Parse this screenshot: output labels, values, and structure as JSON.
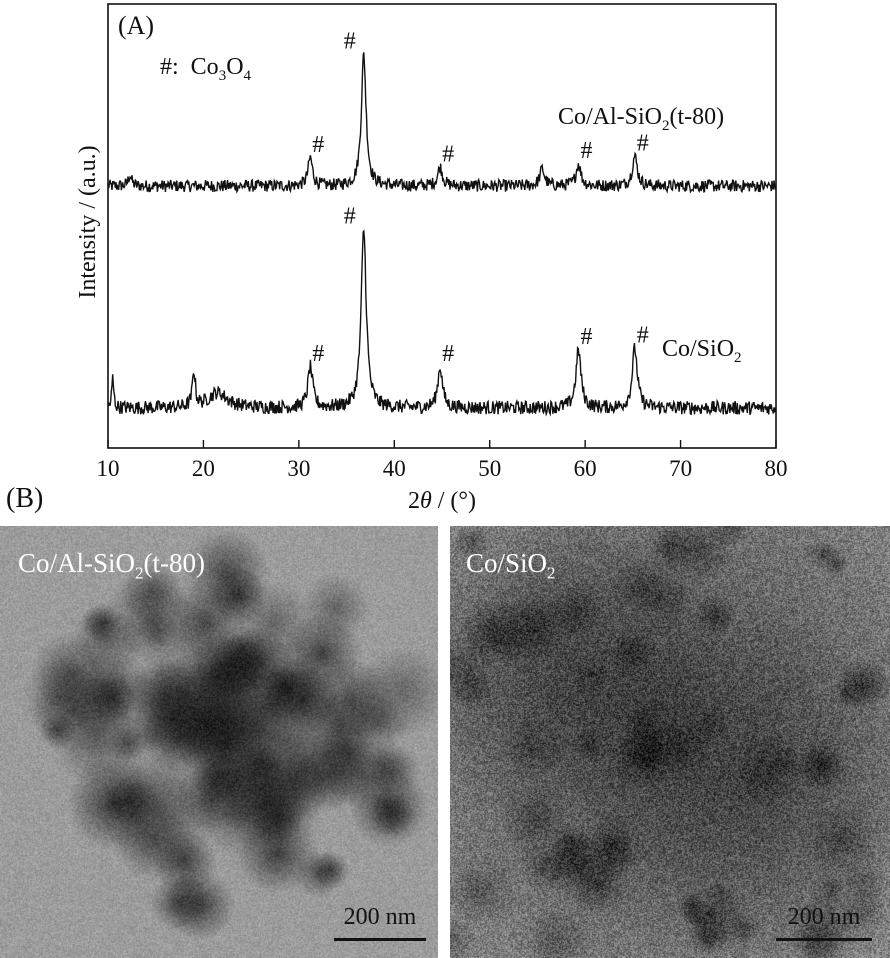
{
  "panel_a_label": "(A)",
  "panel_b_label": "(B)",
  "legend": {
    "symbol": "#:",
    "formula": [
      "Co",
      "3",
      "O",
      "4"
    ]
  },
  "peak_marker": "#",
  "chart_data": {
    "type": "line",
    "xlabel": [
      "2",
      "θ",
      " / (°)"
    ],
    "ylabel": "Intensity / (a.u.)",
    "xlim": [
      10,
      80
    ],
    "xticks": [
      10,
      20,
      30,
      40,
      50,
      60,
      70,
      80
    ],
    "y_scale": "arbitrary units, stacked traces",
    "series": [
      {
        "label": [
          "Co/Al-SiO",
          "2",
          "(t-80)"
        ],
        "baseline": 1.0,
        "noise": 0.045,
        "peaks": [
          {
            "x": 12.3,
            "h": 0.13,
            "w": 0.2
          },
          {
            "x": 31.2,
            "h": 0.33,
            "w": 0.28
          },
          {
            "x": 36.8,
            "h": 1.55,
            "w": 0.3
          },
          {
            "x": 44.8,
            "h": 0.22,
            "w": 0.3
          },
          {
            "x": 55.5,
            "h": 0.2,
            "w": 0.3
          },
          {
            "x": 59.3,
            "h": 0.26,
            "w": 0.3
          },
          {
            "x": 65.2,
            "h": 0.35,
            "w": 0.32
          }
        ],
        "marked_peaks": [
          31.2,
          36.8,
          44.8,
          59.3,
          65.2
        ]
      },
      {
        "label": [
          "Co/SiO",
          "2"
        ],
        "baseline": 0.0,
        "noise": 0.05,
        "peaks": [
          {
            "x": 10.5,
            "h": 0.35,
            "w": 0.12
          },
          {
            "x": 19.0,
            "h": 0.42,
            "w": 0.18
          },
          {
            "x": 21.5,
            "h": 0.18,
            "w": 1.2
          },
          {
            "x": 31.2,
            "h": 0.48,
            "w": 0.3
          },
          {
            "x": 36.8,
            "h": 2.1,
            "w": 0.32
          },
          {
            "x": 44.8,
            "h": 0.48,
            "w": 0.3
          },
          {
            "x": 59.3,
            "h": 0.68,
            "w": 0.32
          },
          {
            "x": 65.2,
            "h": 0.7,
            "w": 0.32
          }
        ],
        "marked_peaks": [
          31.2,
          36.8,
          44.8,
          59.3,
          65.2
        ]
      }
    ]
  },
  "tem_images": [
    {
      "label": [
        "Co/Al-SiO",
        "2",
        "(t-80)"
      ],
      "scale_bar": "200 nm"
    },
    {
      "label": [
        "Co/SiO",
        "2"
      ],
      "scale_bar": "200 nm"
    }
  ]
}
